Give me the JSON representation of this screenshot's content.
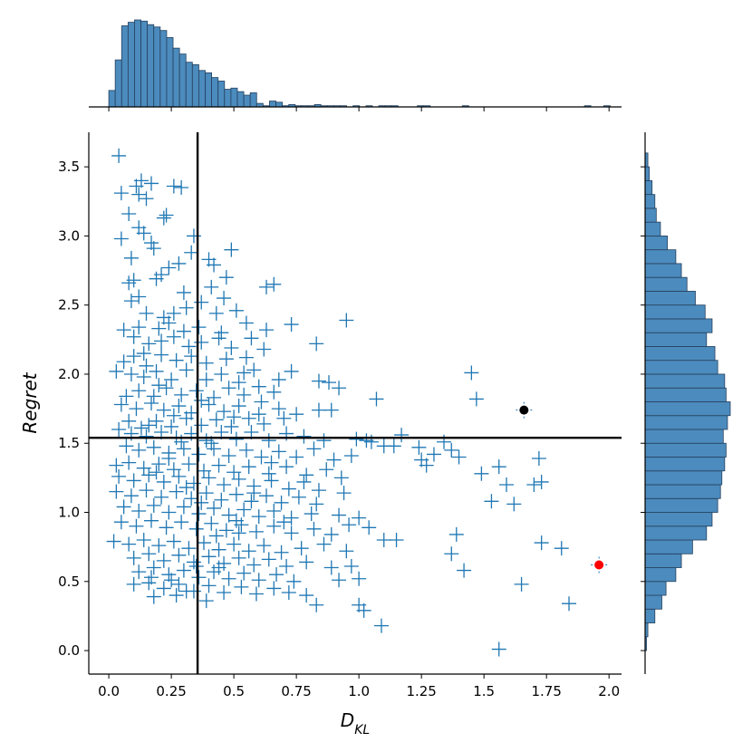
{
  "chart_data": {
    "type": "scatter",
    "title": "",
    "xlabel": {
      "main": "D",
      "sub": "KL"
    },
    "ylabel": "Regret",
    "xlim": [
      -0.08,
      2.05
    ],
    "ylim": [
      -0.17,
      3.75
    ],
    "xticks": [
      "0.0",
      "0.25",
      "0.5",
      "0.75",
      "1.0",
      "1.25",
      "1.5",
      "1.75",
      "2.0"
    ],
    "xtick_values": [
      0.0,
      0.25,
      0.5,
      0.75,
      1.0,
      1.25,
      1.5,
      1.75,
      2.0
    ],
    "yticks": [
      "0.0",
      "0.5",
      "1.0",
      "1.5",
      "2.0",
      "2.5",
      "3.0",
      "3.5"
    ],
    "ytick_values": [
      0.0,
      0.5,
      1.0,
      1.5,
      2.0,
      2.5,
      3.0,
      3.5
    ],
    "reference_lines": {
      "x": 0.355,
      "y": 1.54
    },
    "marker": "plus",
    "color": "#1f77b4",
    "points": [
      [
        0.04,
        3.58
      ],
      [
        0.05,
        3.31
      ],
      [
        0.05,
        2.98
      ],
      [
        0.08,
        3.16
      ],
      [
        0.11,
        3.36
      ],
      [
        0.12,
        3.3
      ],
      [
        0.13,
        3.4
      ],
      [
        0.15,
        3.27
      ],
      [
        0.17,
        3.38
      ],
      [
        0.26,
        3.36
      ],
      [
        0.12,
        3.06
      ],
      [
        0.14,
        3.02
      ],
      [
        0.17,
        2.95
      ],
      [
        0.22,
        3.13
      ],
      [
        0.23,
        3.15
      ],
      [
        0.29,
        3.35
      ],
      [
        0.34,
        3.0
      ],
      [
        0.09,
        2.84
      ],
      [
        0.08,
        2.66
      ],
      [
        0.1,
        2.68
      ],
      [
        0.18,
        2.91
      ],
      [
        0.21,
        2.72
      ],
      [
        0.24,
        2.77
      ],
      [
        0.28,
        2.8
      ],
      [
        0.33,
        2.88
      ],
      [
        0.4,
        2.83
      ],
      [
        0.42,
        2.79
      ],
      [
        0.49,
        2.9
      ],
      [
        0.47,
        2.7
      ],
      [
        0.41,
        2.63
      ],
      [
        0.46,
        2.55
      ],
      [
        0.63,
        2.63
      ],
      [
        0.66,
        2.65
      ],
      [
        0.12,
        2.56
      ],
      [
        0.09,
        2.53
      ],
      [
        0.15,
        2.44
      ],
      [
        0.22,
        2.41
      ],
      [
        0.26,
        2.44
      ],
      [
        0.31,
        2.48
      ],
      [
        0.37,
        2.52
      ],
      [
        0.43,
        2.44
      ],
      [
        0.51,
        2.46
      ],
      [
        0.55,
        2.37
      ],
      [
        0.36,
        2.34
      ],
      [
        0.3,
        2.31
      ],
      [
        0.2,
        2.33
      ],
      [
        0.12,
        2.34
      ],
      [
        0.06,
        2.32
      ],
      [
        0.1,
        2.27
      ],
      [
        0.16,
        2.22
      ],
      [
        0.21,
        2.24
      ],
      [
        0.26,
        2.27
      ],
      [
        0.32,
        2.2
      ],
      [
        0.37,
        2.23
      ],
      [
        0.44,
        2.26
      ],
      [
        0.49,
        2.19
      ],
      [
        0.57,
        2.26
      ],
      [
        0.63,
        2.32
      ],
      [
        0.73,
        2.36
      ],
      [
        0.83,
        2.22
      ],
      [
        0.95,
        2.39
      ],
      [
        0.62,
        2.18
      ],
      [
        0.55,
        2.12
      ],
      [
        0.47,
        2.11
      ],
      [
        0.39,
        2.08
      ],
      [
        0.33,
        2.13
      ],
      [
        0.27,
        2.1
      ],
      [
        0.21,
        2.14
      ],
      [
        0.15,
        2.06
      ],
      [
        0.1,
        2.13
      ],
      [
        0.06,
        2.09
      ],
      [
        0.03,
        2.02
      ],
      [
        0.09,
        2.0
      ],
      [
        0.14,
        1.98
      ],
      [
        0.19,
        2.02
      ],
      [
        0.25,
        1.96
      ],
      [
        0.31,
        2.03
      ],
      [
        0.39,
        1.96
      ],
      [
        0.45,
        2.0
      ],
      [
        0.52,
        1.94
      ],
      [
        0.58,
        2.03
      ],
      [
        0.68,
        1.96
      ],
      [
        0.73,
        2.02
      ],
      [
        0.84,
        1.95
      ],
      [
        0.88,
        1.94
      ],
      [
        0.92,
        1.9
      ],
      [
        0.66,
        1.87
      ],
      [
        0.6,
        1.91
      ],
      [
        0.54,
        1.85
      ],
      [
        0.48,
        1.9
      ],
      [
        0.42,
        1.83
      ],
      [
        0.35,
        1.88
      ],
      [
        0.29,
        1.85
      ],
      [
        0.23,
        1.9
      ],
      [
        0.18,
        1.84
      ],
      [
        0.12,
        1.88
      ],
      [
        0.07,
        1.84
      ],
      [
        0.05,
        1.78
      ],
      [
        0.11,
        1.75
      ],
      [
        0.17,
        1.79
      ],
      [
        0.22,
        1.74
      ],
      [
        0.28,
        1.77
      ],
      [
        0.33,
        1.72
      ],
      [
        0.4,
        1.78
      ],
      [
        0.46,
        1.73
      ],
      [
        0.52,
        1.77
      ],
      [
        0.6,
        1.71
      ],
      [
        0.68,
        1.75
      ],
      [
        0.75,
        1.71
      ],
      [
        0.84,
        1.74
      ],
      [
        0.7,
        1.68
      ],
      [
        0.62,
        1.64
      ],
      [
        0.56,
        1.68
      ],
      [
        0.49,
        1.62
      ],
      [
        0.43,
        1.67
      ],
      [
        0.37,
        1.63
      ],
      [
        0.31,
        1.68
      ],
      [
        0.25,
        1.62
      ],
      [
        0.19,
        1.66
      ],
      [
        0.13,
        1.61
      ],
      [
        0.08,
        1.66
      ],
      [
        0.04,
        1.6
      ],
      [
        0.09,
        1.57
      ],
      [
        0.15,
        1.55
      ],
      [
        0.21,
        1.58
      ],
      [
        0.27,
        1.54
      ],
      [
        0.33,
        1.57
      ],
      [
        0.39,
        1.52
      ],
      [
        0.45,
        1.58
      ],
      [
        0.51,
        1.53
      ],
      [
        0.57,
        1.58
      ],
      [
        0.64,
        1.52
      ],
      [
        0.71,
        1.57
      ],
      [
        0.78,
        1.55
      ],
      [
        0.86,
        1.52
      ],
      [
        0.99,
        1.53
      ],
      [
        1.03,
        1.52
      ],
      [
        1.05,
        1.51
      ],
      [
        1.1,
        1.48
      ],
      [
        1.14,
        1.48
      ],
      [
        1.17,
        1.56
      ],
      [
        1.24,
        1.47
      ],
      [
        1.3,
        1.42
      ],
      [
        1.34,
        1.51
      ],
      [
        1.37,
        1.45
      ],
      [
        1.4,
        1.4
      ],
      [
        1.45,
        2.01
      ],
      [
        1.47,
        1.82
      ],
      [
        1.07,
        1.82
      ],
      [
        0.89,
        1.74
      ],
      [
        0.07,
        1.48
      ],
      [
        0.12,
        1.45
      ],
      [
        0.18,
        1.47
      ],
      [
        0.24,
        1.43
      ],
      [
        0.3,
        1.46
      ],
      [
        0.36,
        1.42
      ],
      [
        0.42,
        1.46
      ],
      [
        0.48,
        1.41
      ],
      [
        0.55,
        1.45
      ],
      [
        0.61,
        1.4
      ],
      [
        0.68,
        1.44
      ],
      [
        0.75,
        1.4
      ],
      [
        0.82,
        1.46
      ],
      [
        0.9,
        1.38
      ],
      [
        0.97,
        1.41
      ],
      [
        1.25,
        1.38
      ],
      [
        1.27,
        1.34
      ],
      [
        1.49,
        1.28
      ],
      [
        1.56,
        1.33
      ],
      [
        1.59,
        1.2
      ],
      [
        1.72,
        1.39
      ],
      [
        1.7,
        1.2
      ],
      [
        1.73,
        1.22
      ],
      [
        0.03,
        1.34
      ],
      [
        0.08,
        1.36
      ],
      [
        0.14,
        1.32
      ],
      [
        0.2,
        1.35
      ],
      [
        0.26,
        1.31
      ],
      [
        0.32,
        1.35
      ],
      [
        0.38,
        1.3
      ],
      [
        0.44,
        1.34
      ],
      [
        0.5,
        1.29
      ],
      [
        0.56,
        1.33
      ],
      [
        0.64,
        1.28
      ],
      [
        0.71,
        1.33
      ],
      [
        0.79,
        1.27
      ],
      [
        0.87,
        1.31
      ],
      [
        0.93,
        1.25
      ],
      [
        0.04,
        1.26
      ],
      [
        0.1,
        1.23
      ],
      [
        0.16,
        1.27
      ],
      [
        0.22,
        1.22
      ],
      [
        0.28,
        1.26
      ],
      [
        0.34,
        1.21
      ],
      [
        0.4,
        1.25
      ],
      [
        0.46,
        1.2
      ],
      [
        0.52,
        1.24
      ],
      [
        0.58,
        1.19
      ],
      [
        0.65,
        1.23
      ],
      [
        0.72,
        1.17
      ],
      [
        0.78,
        1.22
      ],
      [
        0.84,
        1.16
      ],
      [
        0.94,
        1.14
      ],
      [
        0.03,
        1.15
      ],
      [
        0.09,
        1.12
      ],
      [
        0.15,
        1.16
      ],
      [
        0.21,
        1.11
      ],
      [
        0.27,
        1.15
      ],
      [
        0.33,
        1.1
      ],
      [
        0.39,
        1.14
      ],
      [
        0.45,
        1.09
      ],
      [
        0.51,
        1.13
      ],
      [
        0.57,
        1.08
      ],
      [
        0.63,
        1.12
      ],
      [
        0.69,
        1.07
      ],
      [
        0.76,
        1.11
      ],
      [
        0.83,
        1.06
      ],
      [
        1.53,
        1.08
      ],
      [
        1.62,
        1.06
      ],
      [
        0.06,
        1.04
      ],
      [
        0.12,
        1.01
      ],
      [
        0.18,
        1.05
      ],
      [
        0.24,
        1.0
      ],
      [
        0.3,
        1.04
      ],
      [
        0.36,
        0.99
      ],
      [
        0.42,
        1.03
      ],
      [
        0.48,
        0.98
      ],
      [
        0.54,
        1.02
      ],
      [
        0.6,
        0.97
      ],
      [
        0.66,
        1.01
      ],
      [
        0.73,
        0.96
      ],
      [
        0.81,
        0.99
      ],
      [
        0.92,
        0.98
      ],
      [
        1.0,
        0.96
      ],
      [
        0.05,
        0.93
      ],
      [
        0.11,
        0.9
      ],
      [
        0.17,
        0.94
      ],
      [
        0.23,
        0.89
      ],
      [
        0.29,
        0.93
      ],
      [
        0.35,
        0.88
      ],
      [
        0.41,
        0.92
      ],
      [
        0.47,
        0.87
      ],
      [
        0.53,
        0.91
      ],
      [
        0.59,
        0.86
      ],
      [
        0.66,
        0.9
      ],
      [
        0.73,
        0.85
      ],
      [
        0.82,
        0.88
      ],
      [
        0.89,
        0.84
      ],
      [
        0.96,
        0.91
      ],
      [
        1.04,
        0.89
      ],
      [
        1.1,
        0.8
      ],
      [
        1.15,
        0.8
      ],
      [
        1.39,
        0.84
      ],
      [
        1.37,
        0.7
      ],
      [
        1.42,
        0.58
      ],
      [
        1.73,
        0.78
      ],
      [
        1.81,
        0.74
      ],
      [
        1.84,
        0.34
      ],
      [
        1.65,
        0.48
      ],
      [
        1.56,
        0.01
      ],
      [
        0.02,
        0.79
      ],
      [
        0.08,
        0.77
      ],
      [
        0.14,
        0.8
      ],
      [
        0.2,
        0.76
      ],
      [
        0.26,
        0.79
      ],
      [
        0.32,
        0.74
      ],
      [
        0.38,
        0.78
      ],
      [
        0.44,
        0.73
      ],
      [
        0.5,
        0.77
      ],
      [
        0.56,
        0.72
      ],
      [
        0.62,
        0.76
      ],
      [
        0.69,
        0.71
      ],
      [
        0.77,
        0.74
      ],
      [
        0.86,
        0.77
      ],
      [
        0.95,
        0.72
      ],
      [
        0.1,
        0.67
      ],
      [
        0.16,
        0.7
      ],
      [
        0.22,
        0.65
      ],
      [
        0.28,
        0.69
      ],
      [
        0.34,
        0.64
      ],
      [
        0.4,
        0.68
      ],
      [
        0.46,
        0.63
      ],
      [
        0.52,
        0.67
      ],
      [
        0.58,
        0.62
      ],
      [
        0.64,
        0.66
      ],
      [
        0.71,
        0.61
      ],
      [
        0.79,
        0.64
      ],
      [
        0.89,
        0.6
      ],
      [
        0.97,
        0.61
      ],
      [
        0.12,
        0.57
      ],
      [
        0.18,
        0.6
      ],
      [
        0.24,
        0.55
      ],
      [
        0.3,
        0.58
      ],
      [
        0.36,
        0.53
      ],
      [
        0.42,
        0.57
      ],
      [
        0.48,
        0.52
      ],
      [
        0.54,
        0.56
      ],
      [
        0.6,
        0.51
      ],
      [
        0.67,
        0.55
      ],
      [
        0.74,
        0.5
      ],
      [
        0.92,
        0.51
      ],
      [
        1.0,
        0.52
      ],
      [
        0.1,
        0.48
      ],
      [
        0.16,
        0.49
      ],
      [
        0.22,
        0.45
      ],
      [
        0.28,
        0.48
      ],
      [
        0.34,
        0.43
      ],
      [
        0.4,
        0.47
      ],
      [
        0.46,
        0.42
      ],
      [
        0.53,
        0.46
      ],
      [
        0.59,
        0.41
      ],
      [
        0.66,
        0.45
      ],
      [
        0.72,
        0.42
      ],
      [
        0.79,
        0.4
      ],
      [
        0.83,
        0.33
      ],
      [
        1.0,
        0.33
      ],
      [
        1.02,
        0.29
      ],
      [
        1.09,
        0.18
      ],
      [
        0.18,
        0.39
      ],
      [
        0.27,
        0.4
      ],
      [
        0.39,
        0.36
      ],
      [
        0.31,
        0.43
      ],
      [
        0.25,
        0.51
      ],
      [
        0.17,
        0.53
      ],
      [
        0.35,
        0.61
      ],
      [
        0.43,
        0.83
      ],
      [
        0.51,
        0.94
      ],
      [
        0.37,
        1.07
      ],
      [
        0.31,
        1.18
      ],
      [
        0.19,
        1.29
      ],
      [
        0.24,
        1.39
      ],
      [
        0.29,
        1.51
      ],
      [
        0.16,
        1.63
      ],
      [
        0.26,
        1.7
      ],
      [
        0.37,
        1.81
      ],
      [
        0.2,
        1.92
      ],
      [
        0.14,
        2.15
      ],
      [
        0.24,
        2.37
      ],
      [
        0.3,
        2.59
      ],
      [
        0.19,
        2.69
      ],
      [
        0.45,
        2.3
      ],
      [
        0.54,
        2.01
      ],
      [
        0.61,
        1.8
      ],
      [
        0.5,
        1.69
      ],
      [
        0.41,
        1.5
      ],
      [
        0.65,
        1.36
      ],
      [
        0.58,
        1.14
      ],
      [
        0.52,
        0.85
      ],
      [
        0.7,
        0.93
      ],
      [
        0.44,
        0.6
      ]
    ],
    "highlight_points": [
      {
        "x": 1.66,
        "y": 1.74,
        "color": "#000000"
      },
      {
        "x": 1.96,
        "y": 0.62,
        "color": "#ff0000"
      }
    ],
    "top_histogram": {
      "bin_start": 0.0,
      "bin_width": 0.0257,
      "counts": [
        14,
        40,
        69,
        72,
        74,
        73,
        70,
        68,
        65,
        59,
        50,
        45,
        38,
        36,
        31,
        29,
        25,
        22,
        15,
        16,
        13,
        10,
        12,
        3,
        1,
        5,
        4,
        1,
        2,
        1,
        1,
        1,
        2,
        1,
        1,
        1,
        1,
        0,
        1,
        0,
        1,
        0,
        1,
        1,
        1,
        0,
        0,
        0,
        1,
        1,
        0,
        0,
        0,
        0,
        0,
        1,
        0,
        0,
        0,
        0,
        0,
        0,
        0,
        0,
        0,
        0,
        0,
        0,
        0,
        0,
        0,
        0,
        0,
        0,
        1,
        0,
        0,
        1,
        0
      ]
    },
    "right_histogram": {
      "bin_start": 0.0,
      "bin_width": 0.1,
      "counts": [
        1,
        2,
        7,
        12,
        15,
        22,
        26,
        34,
        44,
        48,
        52,
        54,
        55,
        57,
        58,
        56,
        59,
        61,
        58,
        57,
        52,
        50,
        44,
        48,
        43,
        36,
        30,
        26,
        22,
        16,
        11,
        8,
        7,
        5,
        3,
        2
      ]
    },
    "colors": {
      "series": "#1f77b4",
      "hist_fill": "#4c8bbd",
      "hist_edge": "#25405e"
    }
  }
}
